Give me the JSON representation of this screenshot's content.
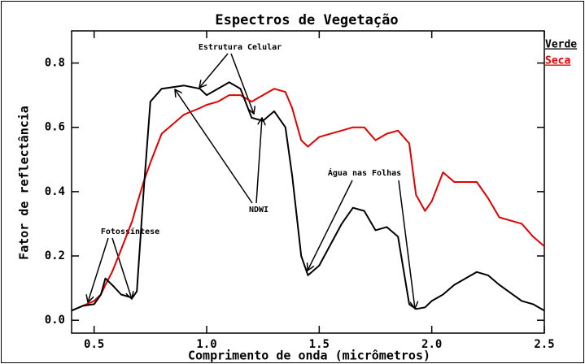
{
  "chart_data": {
    "type": "line",
    "title": "Espectros de Vegetação",
    "xlabel": "Comprimento de onda (micrômetros)",
    "ylabel": "Fator de reflectância",
    "x": [
      0.4,
      0.45,
      0.5,
      0.53,
      0.55,
      0.58,
      0.62,
      0.67,
      0.69,
      0.72,
      0.75,
      0.8,
      0.9,
      0.97,
      1.0,
      1.05,
      1.1,
      1.15,
      1.2,
      1.25,
      1.3,
      1.35,
      1.38,
      1.42,
      1.45,
      1.5,
      1.6,
      1.65,
      1.7,
      1.75,
      1.8,
      1.85,
      1.9,
      1.93,
      1.97,
      2.0,
      2.05,
      2.1,
      2.2,
      2.25,
      2.3,
      2.4,
      2.45,
      2.5
    ],
    "series": [
      {
        "name": "Verde",
        "color": "#000000",
        "values": [
          0.03,
          0.045,
          0.05,
          0.08,
          0.13,
          0.11,
          0.08,
          0.07,
          0.09,
          0.4,
          0.68,
          0.72,
          0.73,
          0.72,
          0.7,
          0.72,
          0.74,
          0.72,
          0.63,
          0.62,
          0.65,
          0.6,
          0.45,
          0.2,
          0.14,
          0.17,
          0.3,
          0.35,
          0.34,
          0.28,
          0.29,
          0.26,
          0.05,
          0.035,
          0.04,
          0.06,
          0.08,
          0.11,
          0.15,
          0.14,
          0.11,
          0.06,
          0.05,
          0.03
        ]
      },
      {
        "name": "Seca",
        "color": "#e00000",
        "values": [
          0.03,
          0.045,
          0.06,
          0.08,
          0.11,
          0.15,
          0.22,
          0.31,
          0.36,
          0.43,
          0.49,
          0.58,
          0.64,
          0.66,
          0.67,
          0.68,
          0.7,
          0.7,
          0.68,
          0.7,
          0.72,
          0.71,
          0.66,
          0.56,
          0.54,
          0.57,
          0.59,
          0.6,
          0.6,
          0.56,
          0.58,
          0.59,
          0.55,
          0.39,
          0.34,
          0.37,
          0.46,
          0.43,
          0.43,
          0.38,
          0.32,
          0.3,
          0.26,
          0.23
        ]
      }
    ],
    "xlim": [
      0.4,
      2.5
    ],
    "ylim": [
      -0.04,
      0.9
    ],
    "xticks": [
      0.5,
      {
        "value": 1,
        "label": "1.0"
      },
      1.5,
      {
        "value": 2,
        "label": "2.0"
      },
      2.5
    ],
    "yticks": [
      {
        "value": 0,
        "label": "0.0"
      },
      0.2,
      0.4,
      0.6,
      0.8
    ],
    "annotations": [
      "Estrutura Celular",
      "Fotossíntese",
      "NDWI",
      "Água nas Folhas"
    ]
  }
}
